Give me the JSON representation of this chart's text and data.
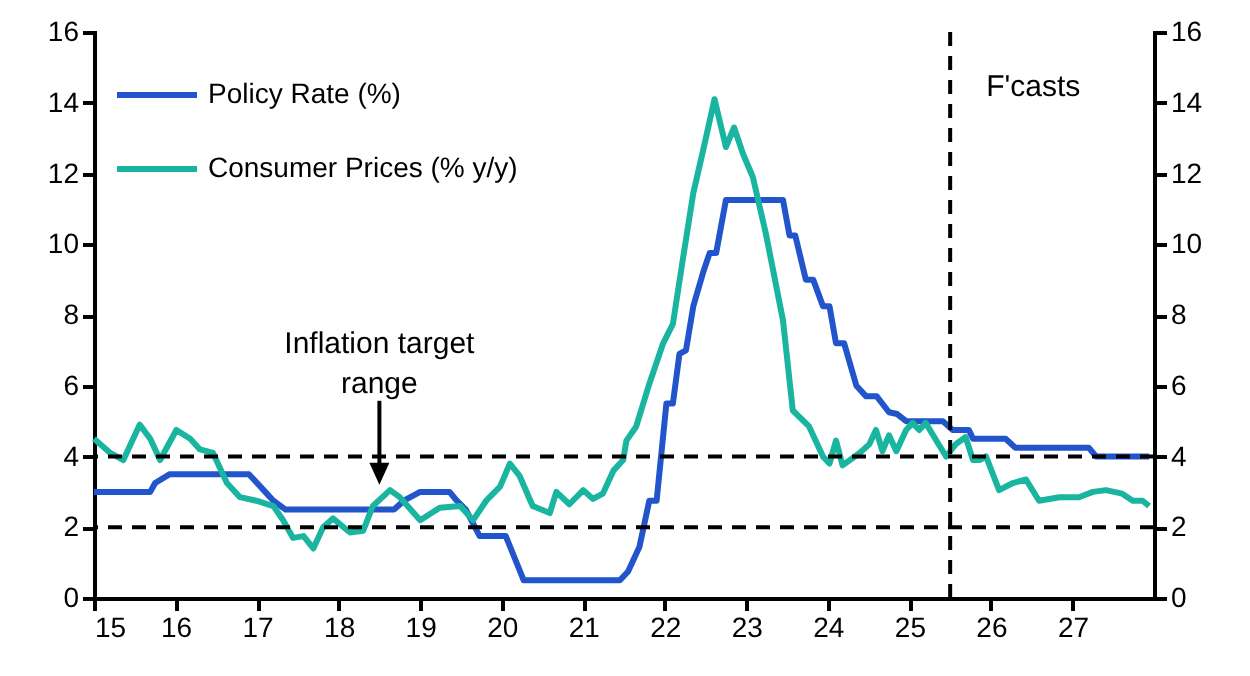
{
  "chart_data": {
    "type": "line",
    "xlim": [
      15,
      28
    ],
    "xticks": [
      15,
      16,
      17,
      18,
      19,
      20,
      21,
      22,
      23,
      24,
      25,
      26,
      27
    ],
    "ylim": [
      0,
      16
    ],
    "yticks": [
      0,
      2,
      4,
      6,
      8,
      10,
      12,
      14,
      16
    ],
    "y2lim": [
      0,
      16
    ],
    "y2ticks": [
      0,
      2,
      4,
      6,
      8,
      10,
      12,
      14,
      16
    ],
    "legend": "top left",
    "grid": false,
    "series": [
      {
        "name": "Policy Rate (%)",
        "color": "#2255cc",
        "x": [
          15.0,
          15.69,
          15.75,
          15.93,
          16.9,
          17.0,
          17.1,
          17.2,
          17.35,
          18.68,
          18.8,
          19.0,
          19.36,
          19.45,
          19.56,
          19.73,
          20.05,
          20.27,
          21.45,
          21.55,
          21.69,
          21.81,
          21.9,
          22.02,
          22.1,
          22.18,
          22.26,
          22.35,
          22.47,
          22.55,
          22.63,
          22.75,
          23.45,
          23.53,
          23.6,
          23.73,
          23.82,
          23.94,
          24.02,
          24.1,
          24.2,
          24.35,
          24.47,
          24.6,
          24.75,
          24.85,
          24.96,
          25.41,
          25.53,
          25.73,
          25.78,
          26.18,
          26.3,
          27.2,
          27.29,
          27.94
        ],
        "values": [
          3.0,
          3.0,
          3.25,
          3.5,
          3.5,
          3.25,
          3.0,
          2.75,
          2.5,
          2.5,
          2.75,
          3.0,
          3.0,
          2.75,
          2.5,
          1.75,
          1.75,
          0.5,
          0.5,
          0.75,
          1.45,
          2.75,
          2.75,
          5.5,
          5.5,
          6.9,
          7.0,
          8.25,
          9.2,
          9.75,
          9.75,
          11.25,
          11.25,
          10.25,
          10.25,
          9.0,
          9.0,
          8.25,
          8.25,
          7.2,
          7.2,
          6.0,
          5.7,
          5.7,
          5.25,
          5.2,
          5.0,
          5.0,
          4.75,
          4.75,
          4.5,
          4.5,
          4.25,
          4.25,
          4.0,
          4.0
        ]
      },
      {
        "name": "Consumer Prices (% y/y)",
        "color": "#19b5a0",
        "x": [
          15.0,
          15.2,
          15.36,
          15.56,
          15.69,
          15.81,
          16.01,
          16.18,
          16.3,
          16.46,
          16.63,
          16.79,
          16.99,
          17.2,
          17.32,
          17.44,
          17.57,
          17.69,
          17.81,
          17.93,
          18.14,
          18.3,
          18.42,
          18.63,
          18.75,
          19.0,
          19.24,
          19.49,
          19.65,
          19.81,
          19.98,
          20.1,
          20.22,
          20.38,
          20.59,
          20.67,
          20.83,
          21.0,
          21.12,
          21.24,
          21.37,
          21.49,
          21.53,
          21.65,
          21.81,
          21.98,
          22.1,
          22.22,
          22.35,
          22.47,
          22.61,
          22.75,
          22.85,
          22.96,
          23.08,
          23.24,
          23.45,
          23.57,
          23.77,
          23.94,
          24.02,
          24.1,
          24.18,
          24.39,
          24.51,
          24.59,
          24.67,
          24.75,
          24.84,
          24.96,
          25.04,
          25.12,
          25.2,
          25.33,
          25.45,
          25.57,
          25.69,
          25.78,
          25.86,
          25.94,
          26.1,
          26.27,
          26.43,
          26.59,
          26.84,
          27.08,
          27.25,
          27.41,
          27.61,
          27.74,
          27.86,
          27.94
        ],
        "values": [
          4.5,
          4.1,
          3.9,
          4.9,
          4.5,
          3.9,
          4.75,
          4.5,
          4.2,
          4.1,
          3.25,
          2.85,
          2.75,
          2.6,
          2.2,
          1.7,
          1.75,
          1.4,
          2.0,
          2.25,
          1.85,
          1.9,
          2.6,
          3.05,
          2.85,
          2.2,
          2.55,
          2.6,
          2.2,
          2.75,
          3.15,
          3.8,
          3.45,
          2.6,
          2.4,
          3.0,
          2.65,
          3.05,
          2.8,
          2.95,
          3.6,
          3.9,
          4.45,
          4.85,
          6.05,
          7.2,
          7.75,
          9.55,
          11.45,
          12.65,
          14.1,
          12.75,
          13.3,
          12.55,
          11.9,
          10.3,
          7.85,
          5.3,
          4.85,
          4.0,
          3.8,
          4.45,
          3.75,
          4.1,
          4.35,
          4.75,
          4.15,
          4.6,
          4.15,
          4.75,
          4.95,
          4.75,
          4.95,
          4.45,
          4.0,
          4.35,
          4.55,
          3.9,
          3.9,
          4.0,
          3.05,
          3.25,
          3.35,
          2.75,
          2.85,
          2.85,
          3.0,
          3.05,
          2.95,
          2.75,
          2.75,
          2.6
        ]
      }
    ],
    "ref_lines": [
      {
        "axis": "y",
        "value": 4,
        "line_style": "dashed",
        "color": "#000000"
      },
      {
        "axis": "y",
        "value": 2,
        "line_style": "dashed",
        "color": "#000000"
      },
      {
        "axis": "x",
        "value": 25.5,
        "label": "F'casts",
        "line_style": "dashed",
        "color": "#000000"
      }
    ],
    "annotations": [
      {
        "text": "Inflation target range",
        "x": 18.5,
        "y": 3.2
      }
    ]
  }
}
